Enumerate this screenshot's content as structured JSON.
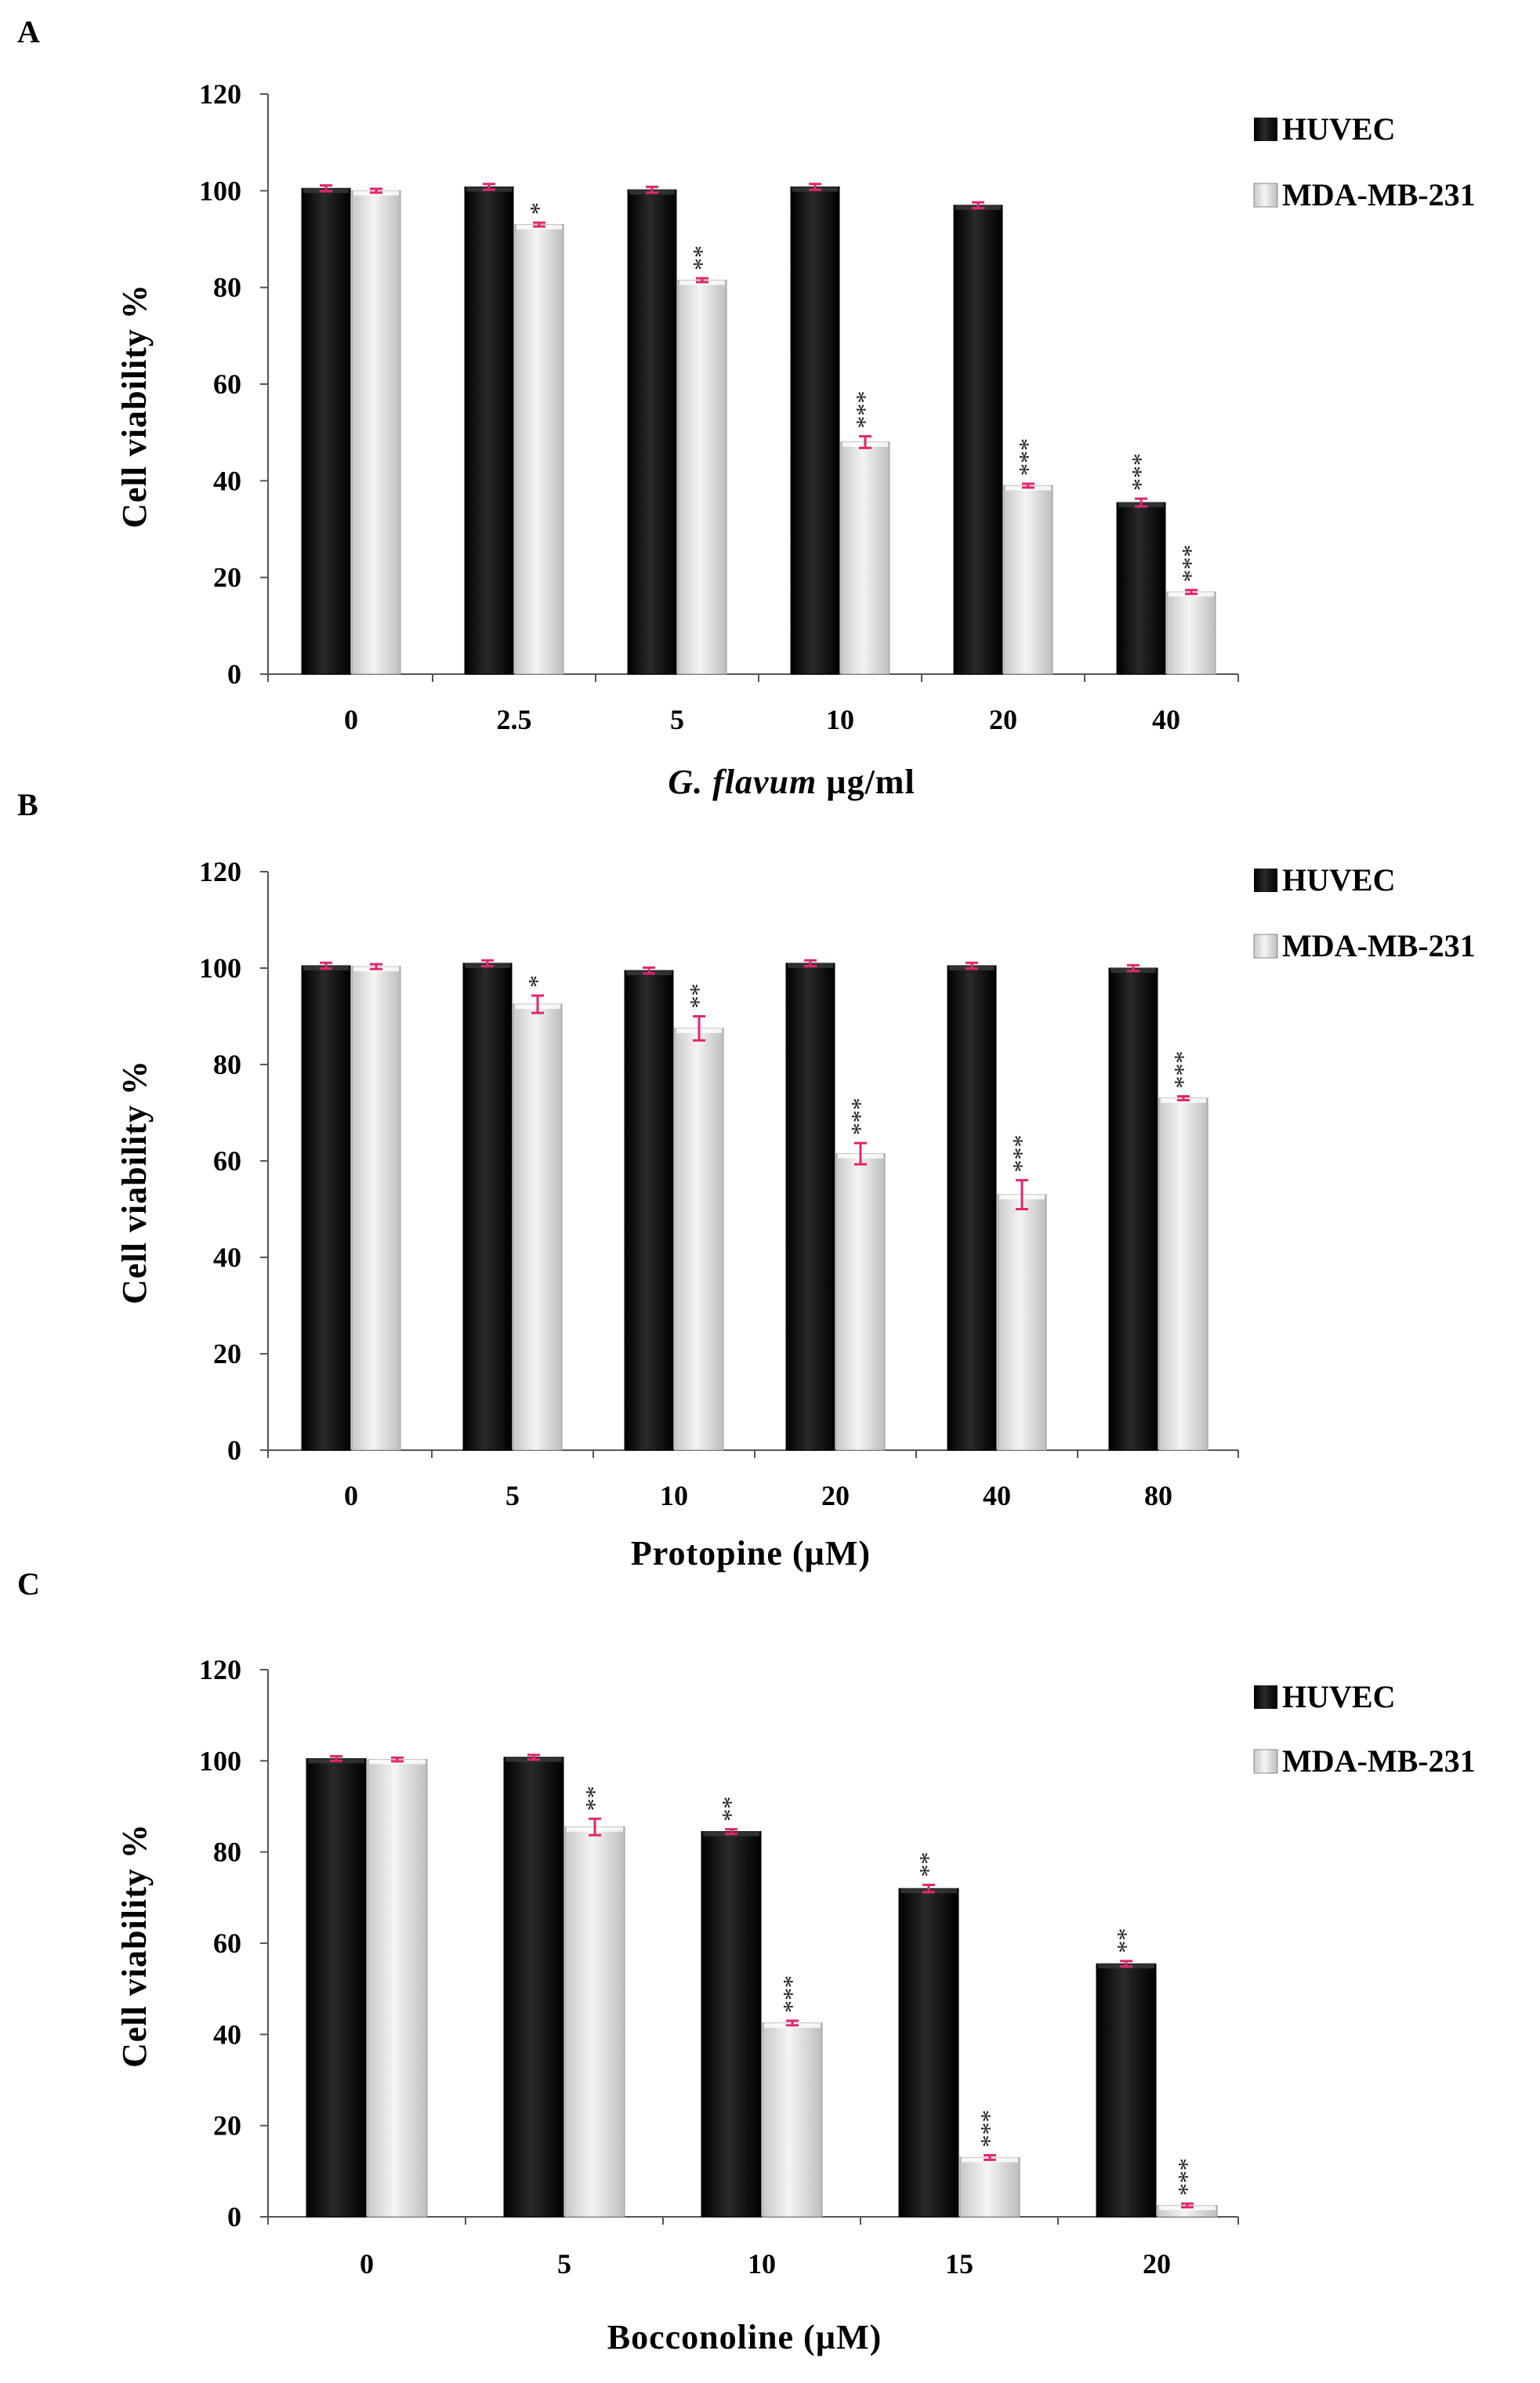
{
  "chart_data": [
    {
      "panel": "A",
      "type": "bar",
      "xlabel_parts": [
        {
          "text": "G. flavum",
          "italic": true
        },
        {
          "text": " µg/ml",
          "italic": false
        }
      ],
      "ylabel": "Cell viability %",
      "ylim": [
        0,
        120
      ],
      "yticks": [
        0,
        20,
        40,
        60,
        80,
        100,
        120
      ],
      "categories": [
        "0",
        "2.5",
        "5",
        "10",
        "20",
        "40"
      ],
      "series": [
        {
          "name": "HUVEC",
          "values": [
            100.5,
            100.8,
            100.2,
            100.8,
            97,
            35.5
          ],
          "errors": [
            0.6,
            0.6,
            0.6,
            0.6,
            0.6,
            0.8
          ],
          "sig": [
            "",
            "",
            "",
            "",
            "",
            "***"
          ]
        },
        {
          "name": "MDA-MB-231",
          "values": [
            100,
            93,
            81.5,
            48,
            39,
            17
          ],
          "errors": [
            0.4,
            0.4,
            0.4,
            1.2,
            0.4,
            0.4
          ],
          "sig": [
            "",
            "*",
            "**",
            "***",
            "***",
            "***"
          ]
        }
      ]
    },
    {
      "panel": "B",
      "type": "bar",
      "xlabel_parts": [
        {
          "text": "Protopine (µM)",
          "italic": false
        }
      ],
      "ylabel": "Cell viability %",
      "ylim": [
        0,
        120
      ],
      "yticks": [
        0,
        20,
        40,
        60,
        80,
        100,
        120
      ],
      "categories": [
        "0",
        "5",
        "10",
        "20",
        "40",
        "80"
      ],
      "series": [
        {
          "name": "HUVEC",
          "values": [
            100.5,
            101,
            99.5,
            101,
            100.5,
            100
          ],
          "errors": [
            0.6,
            0.6,
            0.6,
            0.6,
            0.6,
            0.6
          ],
          "sig": [
            "",
            "",
            "",
            "",
            "",
            ""
          ]
        },
        {
          "name": "MDA-MB-231",
          "values": [
            100.3,
            92.5,
            87.5,
            61.5,
            53,
            73
          ],
          "errors": [
            0.5,
            1.8,
            2.5,
            2.2,
            3,
            0.4
          ],
          "sig": [
            "",
            "*",
            "**",
            "***",
            "***",
            "***"
          ]
        }
      ]
    },
    {
      "panel": "C",
      "type": "bar",
      "xlabel_parts": [
        {
          "text": "Bocconoline (µM)",
          "italic": false
        }
      ],
      "ylabel": "Cell viability %",
      "ylim": [
        0,
        120
      ],
      "yticks": [
        0,
        20,
        40,
        60,
        80,
        100,
        120
      ],
      "categories": [
        "0",
        "5",
        "10",
        "15",
        "20"
      ],
      "series": [
        {
          "name": "HUVEC",
          "values": [
            100.5,
            100.8,
            84.5,
            72,
            55.5
          ],
          "errors": [
            0.5,
            0.5,
            0.5,
            0.8,
            0.6
          ],
          "sig": [
            "",
            "",
            "**",
            "**",
            "**"
          ]
        },
        {
          "name": "MDA-MB-231",
          "values": [
            100.3,
            85.5,
            42.5,
            13,
            2.5
          ],
          "errors": [
            0.4,
            1.8,
            0.5,
            0.5,
            0.4
          ],
          "sig": [
            "",
            "**",
            "***",
            "***",
            "***"
          ]
        }
      ]
    }
  ],
  "colors": {
    "huvec": "#0a0a0a",
    "mda": "#e4e4e4",
    "error_bar": "#e0266f",
    "axis": "#555555",
    "text": "#000000"
  }
}
